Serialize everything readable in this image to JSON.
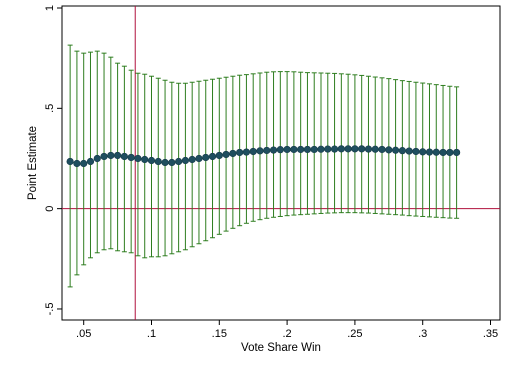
{
  "chart_data": {
    "type": "scatter",
    "title": "",
    "xlabel": "Vote Share Win",
    "ylabel": "Point Estimate",
    "xlim": [
      0.034,
      0.357
    ],
    "ylim": [
      -0.555,
      1.01
    ],
    "xticks": [
      {
        "value": 0.05,
        "label": ".05"
      },
      {
        "value": 0.1,
        "label": ".1"
      },
      {
        "value": 0.15,
        "label": ".15"
      },
      {
        "value": 0.2,
        "label": ".2"
      },
      {
        "value": 0.25,
        "label": ".25"
      },
      {
        "value": 0.3,
        "label": ".3"
      },
      {
        "value": 0.35,
        "label": ".35"
      }
    ],
    "yticks": [
      {
        "value": -0.5,
        "label": "-.5"
      },
      {
        "value": 0,
        "label": "0"
      },
      {
        "value": 0.5,
        "label": ".5"
      },
      {
        "value": 1,
        "label": "1"
      }
    ],
    "reference_lines": {
      "x": 0.088,
      "y": 0
    },
    "grid": false,
    "legend": "none",
    "colors": {
      "marker": "#1f4e5f",
      "marker_edge": "#173c49",
      "error_bar": "#2e7d1f",
      "reference_line": "#b0103c",
      "frame": "#000000"
    },
    "x_start": 0.04,
    "x_step": 0.005,
    "series": [
      {
        "point_estimate": [
          0.235,
          0.225,
          0.225,
          0.235,
          0.25,
          0.26,
          0.265,
          0.265,
          0.26,
          0.255,
          0.25,
          0.245,
          0.24,
          0.235,
          0.23,
          0.23,
          0.235,
          0.24,
          0.245,
          0.25,
          0.255,
          0.26,
          0.265,
          0.27,
          0.275,
          0.28,
          0.282,
          0.285,
          0.288,
          0.29,
          0.292,
          0.294,
          0.295,
          0.295,
          0.295,
          0.295,
          0.295,
          0.296,
          0.297,
          0.297,
          0.298,
          0.298,
          0.298,
          0.298,
          0.297,
          0.296,
          0.295,
          0.293,
          0.291,
          0.289,
          0.287,
          0.285,
          0.283,
          0.282,
          0.281,
          0.28,
          0.28,
          0.28
        ],
        "upper": [
          0.815,
          0.785,
          0.775,
          0.78,
          0.785,
          0.775,
          0.755,
          0.725,
          0.71,
          0.69,
          0.675,
          0.67,
          0.66,
          0.65,
          0.64,
          0.63,
          0.625,
          0.625,
          0.63,
          0.635,
          0.64,
          0.645,
          0.65,
          0.655,
          0.66,
          0.665,
          0.668,
          0.672,
          0.676,
          0.68,
          0.682,
          0.683,
          0.683,
          0.682,
          0.68,
          0.678,
          0.677,
          0.676,
          0.675,
          0.674,
          0.672,
          0.67,
          0.667,
          0.664,
          0.66,
          0.656,
          0.652,
          0.648,
          0.643,
          0.638,
          0.634,
          0.63,
          0.626,
          0.622,
          0.618,
          0.614,
          0.61,
          0.607
        ],
        "lower": [
          -0.39,
          -0.33,
          -0.28,
          -0.245,
          -0.22,
          -0.205,
          -0.2,
          -0.21,
          -0.215,
          -0.22,
          -0.235,
          -0.245,
          -0.24,
          -0.24,
          -0.235,
          -0.225,
          -0.215,
          -0.205,
          -0.19,
          -0.175,
          -0.16,
          -0.145,
          -0.128,
          -0.112,
          -0.098,
          -0.085,
          -0.073,
          -0.063,
          -0.055,
          -0.048,
          -0.043,
          -0.039,
          -0.035,
          -0.032,
          -0.03,
          -0.028,
          -0.026,
          -0.024,
          -0.022,
          -0.021,
          -0.02,
          -0.02,
          -0.02,
          -0.021,
          -0.022,
          -0.024,
          -0.026,
          -0.028,
          -0.03,
          -0.032,
          -0.035,
          -0.037,
          -0.039,
          -0.041,
          -0.043,
          -0.045,
          -0.047,
          -0.048
        ]
      }
    ]
  }
}
